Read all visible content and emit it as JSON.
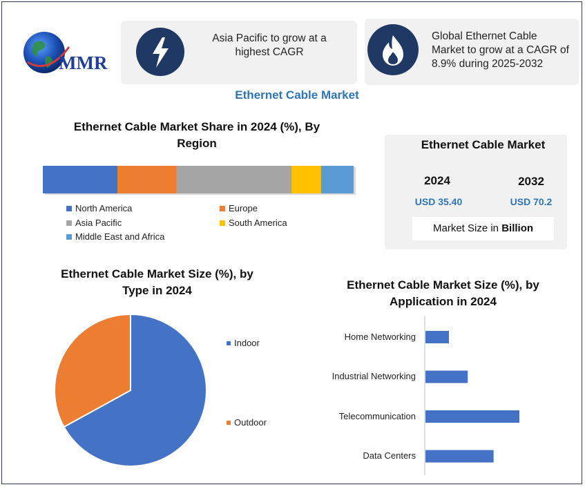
{
  "logo": {
    "text": "MMR"
  },
  "info_cards": [
    {
      "icon": "lightning-bolt-icon",
      "text_lines": [
        "Asia Pacific to grow at a",
        "highest CAGR"
      ]
    },
    {
      "icon": "flame-icon",
      "text_lines": [
        "Global Ethernet Cable",
        "Market to grow at a CAGR of",
        "8.9% during 2025-2032"
      ]
    }
  ],
  "main_title": "Ethernet Cable Market",
  "market_box": {
    "title": "Ethernet Cable Market",
    "years": [
      {
        "year": "2024",
        "value": "USD 35.40"
      },
      {
        "year": "2032",
        "value": "USD 70.2"
      }
    ],
    "size_label_prefix": "Market Size in ",
    "size_label_bold": "Billion"
  },
  "colors": {
    "blue": "#4472c4",
    "orange": "#ed7d31",
    "gray": "#a5a5a5",
    "yellow": "#ffc000",
    "lightblue": "#5b9bd5",
    "navy": "#1f3864",
    "accent_text": "#2e75b6"
  },
  "chart_data": [
    {
      "type": "bar",
      "orientation": "stacked-horizontal",
      "title_lines": [
        "Ethernet Cable Market Share in 2024 (%), By",
        "Region"
      ],
      "legend_position": "bottom",
      "series": [
        {
          "name": "North America",
          "value": 24,
          "color": "#4472c4"
        },
        {
          "name": "Europe",
          "value": 19,
          "color": "#ed7d31"
        },
        {
          "name": "Asia Pacific",
          "value": 37,
          "color": "#a5a5a5"
        },
        {
          "name": "South America",
          "value": 9.5,
          "color": "#ffc000"
        },
        {
          "name": "Middle East and Africa",
          "value": 10.5,
          "color": "#5b9bd5"
        }
      ]
    },
    {
      "type": "pie",
      "title_lines": [
        "Ethernet Cable Market Size (%), by",
        "Type in 2024"
      ],
      "legend_position": "right",
      "slices": [
        {
          "name": "Indoor",
          "value": 67,
          "color": "#4472c4"
        },
        {
          "name": "Outdoor",
          "value": 33,
          "color": "#ed7d31"
        }
      ]
    },
    {
      "type": "bar",
      "orientation": "horizontal",
      "title_lines": [
        "Ethernet Cable Market Size (%), by",
        "Application in 2024"
      ],
      "categories": [
        "Home Networking",
        "Industrial Networking",
        "Telecommunication",
        "Data Centers"
      ],
      "values": [
        10,
        18,
        40,
        29
      ],
      "xlim": [
        0,
        100
      ],
      "color": "#4472c4",
      "grid": false
    }
  ]
}
